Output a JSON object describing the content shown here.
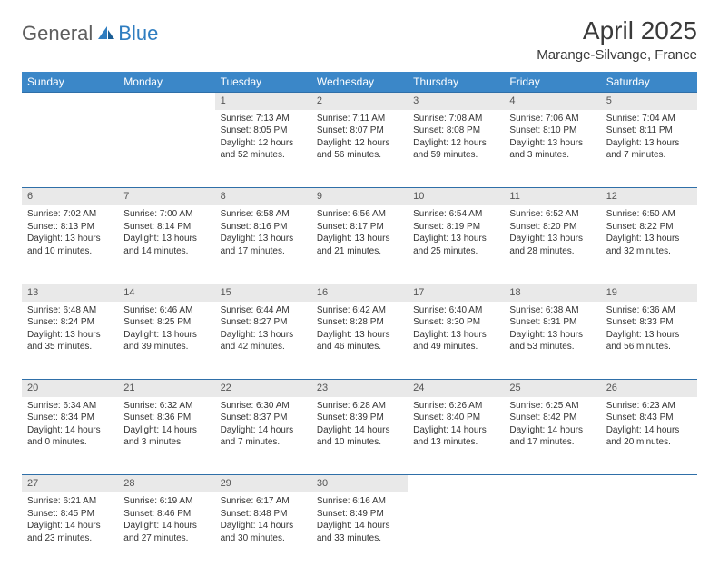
{
  "logo": {
    "general": "General",
    "blue": "Blue"
  },
  "title": "April 2025",
  "location": "Marange-Silvange, France",
  "colors": {
    "header_bg": "#3b87c8",
    "header_text": "#ffffff",
    "daynum_bg": "#e9e9e9",
    "border": "#2f6fa8",
    "logo_gray": "#5e5e5e",
    "logo_blue": "#2f7dc0"
  },
  "weekdays": [
    "Sunday",
    "Monday",
    "Tuesday",
    "Wednesday",
    "Thursday",
    "Friday",
    "Saturday"
  ],
  "weeks": [
    [
      null,
      null,
      {
        "n": "1",
        "sr": "Sunrise: 7:13 AM",
        "ss": "Sunset: 8:05 PM",
        "dl": "Daylight: 12 hours and 52 minutes."
      },
      {
        "n": "2",
        "sr": "Sunrise: 7:11 AM",
        "ss": "Sunset: 8:07 PM",
        "dl": "Daylight: 12 hours and 56 minutes."
      },
      {
        "n": "3",
        "sr": "Sunrise: 7:08 AM",
        "ss": "Sunset: 8:08 PM",
        "dl": "Daylight: 12 hours and 59 minutes."
      },
      {
        "n": "4",
        "sr": "Sunrise: 7:06 AM",
        "ss": "Sunset: 8:10 PM",
        "dl": "Daylight: 13 hours and 3 minutes."
      },
      {
        "n": "5",
        "sr": "Sunrise: 7:04 AM",
        "ss": "Sunset: 8:11 PM",
        "dl": "Daylight: 13 hours and 7 minutes."
      }
    ],
    [
      {
        "n": "6",
        "sr": "Sunrise: 7:02 AM",
        "ss": "Sunset: 8:13 PM",
        "dl": "Daylight: 13 hours and 10 minutes."
      },
      {
        "n": "7",
        "sr": "Sunrise: 7:00 AM",
        "ss": "Sunset: 8:14 PM",
        "dl": "Daylight: 13 hours and 14 minutes."
      },
      {
        "n": "8",
        "sr": "Sunrise: 6:58 AM",
        "ss": "Sunset: 8:16 PM",
        "dl": "Daylight: 13 hours and 17 minutes."
      },
      {
        "n": "9",
        "sr": "Sunrise: 6:56 AM",
        "ss": "Sunset: 8:17 PM",
        "dl": "Daylight: 13 hours and 21 minutes."
      },
      {
        "n": "10",
        "sr": "Sunrise: 6:54 AM",
        "ss": "Sunset: 8:19 PM",
        "dl": "Daylight: 13 hours and 25 minutes."
      },
      {
        "n": "11",
        "sr": "Sunrise: 6:52 AM",
        "ss": "Sunset: 8:20 PM",
        "dl": "Daylight: 13 hours and 28 minutes."
      },
      {
        "n": "12",
        "sr": "Sunrise: 6:50 AM",
        "ss": "Sunset: 8:22 PM",
        "dl": "Daylight: 13 hours and 32 minutes."
      }
    ],
    [
      {
        "n": "13",
        "sr": "Sunrise: 6:48 AM",
        "ss": "Sunset: 8:24 PM",
        "dl": "Daylight: 13 hours and 35 minutes."
      },
      {
        "n": "14",
        "sr": "Sunrise: 6:46 AM",
        "ss": "Sunset: 8:25 PM",
        "dl": "Daylight: 13 hours and 39 minutes."
      },
      {
        "n": "15",
        "sr": "Sunrise: 6:44 AM",
        "ss": "Sunset: 8:27 PM",
        "dl": "Daylight: 13 hours and 42 minutes."
      },
      {
        "n": "16",
        "sr": "Sunrise: 6:42 AM",
        "ss": "Sunset: 8:28 PM",
        "dl": "Daylight: 13 hours and 46 minutes."
      },
      {
        "n": "17",
        "sr": "Sunrise: 6:40 AM",
        "ss": "Sunset: 8:30 PM",
        "dl": "Daylight: 13 hours and 49 minutes."
      },
      {
        "n": "18",
        "sr": "Sunrise: 6:38 AM",
        "ss": "Sunset: 8:31 PM",
        "dl": "Daylight: 13 hours and 53 minutes."
      },
      {
        "n": "19",
        "sr": "Sunrise: 6:36 AM",
        "ss": "Sunset: 8:33 PM",
        "dl": "Daylight: 13 hours and 56 minutes."
      }
    ],
    [
      {
        "n": "20",
        "sr": "Sunrise: 6:34 AM",
        "ss": "Sunset: 8:34 PM",
        "dl": "Daylight: 14 hours and 0 minutes."
      },
      {
        "n": "21",
        "sr": "Sunrise: 6:32 AM",
        "ss": "Sunset: 8:36 PM",
        "dl": "Daylight: 14 hours and 3 minutes."
      },
      {
        "n": "22",
        "sr": "Sunrise: 6:30 AM",
        "ss": "Sunset: 8:37 PM",
        "dl": "Daylight: 14 hours and 7 minutes."
      },
      {
        "n": "23",
        "sr": "Sunrise: 6:28 AM",
        "ss": "Sunset: 8:39 PM",
        "dl": "Daylight: 14 hours and 10 minutes."
      },
      {
        "n": "24",
        "sr": "Sunrise: 6:26 AM",
        "ss": "Sunset: 8:40 PM",
        "dl": "Daylight: 14 hours and 13 minutes."
      },
      {
        "n": "25",
        "sr": "Sunrise: 6:25 AM",
        "ss": "Sunset: 8:42 PM",
        "dl": "Daylight: 14 hours and 17 minutes."
      },
      {
        "n": "26",
        "sr": "Sunrise: 6:23 AM",
        "ss": "Sunset: 8:43 PM",
        "dl": "Daylight: 14 hours and 20 minutes."
      }
    ],
    [
      {
        "n": "27",
        "sr": "Sunrise: 6:21 AM",
        "ss": "Sunset: 8:45 PM",
        "dl": "Daylight: 14 hours and 23 minutes."
      },
      {
        "n": "28",
        "sr": "Sunrise: 6:19 AM",
        "ss": "Sunset: 8:46 PM",
        "dl": "Daylight: 14 hours and 27 minutes."
      },
      {
        "n": "29",
        "sr": "Sunrise: 6:17 AM",
        "ss": "Sunset: 8:48 PM",
        "dl": "Daylight: 14 hours and 30 minutes."
      },
      {
        "n": "30",
        "sr": "Sunrise: 6:16 AM",
        "ss": "Sunset: 8:49 PM",
        "dl": "Daylight: 14 hours and 33 minutes."
      },
      null,
      null,
      null
    ]
  ]
}
